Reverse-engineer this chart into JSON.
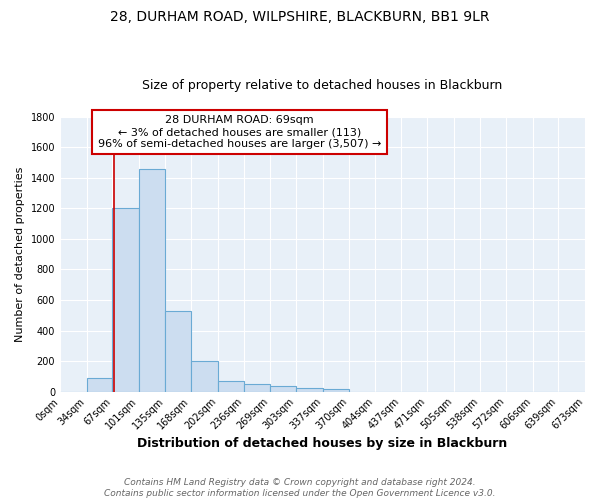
{
  "title1": "28, DURHAM ROAD, WILPSHIRE, BLACKBURN, BB1 9LR",
  "title2": "Size of property relative to detached houses in Blackburn",
  "xlabel": "Distribution of detached houses by size in Blackburn",
  "ylabel": "Number of detached properties",
  "footnote1": "Contains HM Land Registry data © Crown copyright and database right 2024.",
  "footnote2": "Contains public sector information licensed under the Open Government Licence v3.0.",
  "bin_edges": [
    0,
    34,
    67,
    101,
    135,
    168,
    202,
    236,
    269,
    303,
    337,
    370,
    404,
    437,
    471,
    505,
    538,
    572,
    606,
    639,
    673
  ],
  "bar_heights": [
    0,
    90,
    1200,
    1460,
    530,
    200,
    70,
    50,
    35,
    25,
    15,
    0,
    0,
    0,
    0,
    0,
    0,
    0,
    0,
    0
  ],
  "bar_color": "#ccddf0",
  "bar_edge_color": "#6aaad4",
  "background_color": "#e8f0f8",
  "grid_color": "#ffffff",
  "fig_bg_color": "#ffffff",
  "property_size": 69,
  "vline_color": "#cc0000",
  "annotation_line1": "28 DURHAM ROAD: 69sqm",
  "annotation_line2": "← 3% of detached houses are smaller (113)",
  "annotation_line3": "96% of semi-detached houses are larger (3,507) →",
  "annotation_box_color": "#ffffff",
  "annotation_border_color": "#cc0000",
  "ylim": [
    0,
    1800
  ],
  "yticks": [
    0,
    200,
    400,
    600,
    800,
    1000,
    1200,
    1400,
    1600,
    1800
  ],
  "xtick_labels": [
    "0sqm",
    "34sqm",
    "67sqm",
    "101sqm",
    "135sqm",
    "168sqm",
    "202sqm",
    "236sqm",
    "269sqm",
    "303sqm",
    "337sqm",
    "370sqm",
    "404sqm",
    "437sqm",
    "471sqm",
    "505sqm",
    "538sqm",
    "572sqm",
    "606sqm",
    "639sqm",
    "673sqm"
  ],
  "title1_fontsize": 10,
  "title2_fontsize": 9,
  "xlabel_fontsize": 9,
  "ylabel_fontsize": 8,
  "tick_fontsize": 7,
  "annotation_fontsize": 8,
  "footnote_fontsize": 6.5
}
